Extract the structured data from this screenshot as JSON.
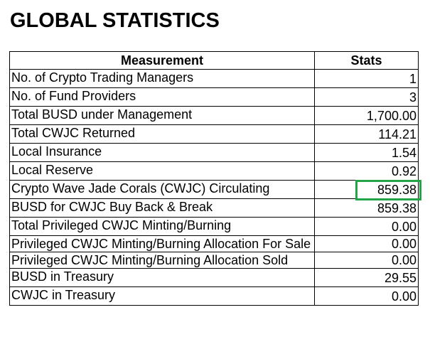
{
  "page": {
    "title": "GLOBAL STATISTICS"
  },
  "table": {
    "headers": {
      "measurement": "Measurement",
      "stats": "Stats"
    },
    "rows": [
      {
        "measurement": "No. of Crypto Trading Managers",
        "stats": "1"
      },
      {
        "measurement": "No. of Fund Providers",
        "stats": "3"
      },
      {
        "measurement": "Total BUSD under Management",
        "stats": "1,700.00"
      },
      {
        "measurement": "Total CWJC Returned",
        "stats": "114.21"
      },
      {
        "measurement": "Local Insurance",
        "stats": "1.54"
      },
      {
        "measurement": "Local Reserve",
        "stats": "0.92"
      },
      {
        "measurement": "Crypto Wave Jade Corals (CWJC) Circulating",
        "stats": "859.38"
      },
      {
        "measurement": "BUSD for CWJC Buy Back & Break",
        "stats": "859.38"
      },
      {
        "measurement": "Total Privileged CWJC Minting/Burning",
        "stats": "0.00"
      },
      {
        "measurement": "Privileged CWJC Minting/Burning Allocation For Sale",
        "stats": "0.00"
      },
      {
        "measurement": "Privileged CWJC Minting/Burning Allocation Sold",
        "stats": "0.00"
      },
      {
        "measurement": "BUSD in Treasury",
        "stats": "29.55"
      },
      {
        "measurement": "CWJC in Treasury",
        "stats": "0.00"
      }
    ],
    "highlighted_row_index": 6
  },
  "colors": {
    "highlight": "#22a447",
    "border": "#000000",
    "text": "#000000",
    "background": "#ffffff"
  }
}
